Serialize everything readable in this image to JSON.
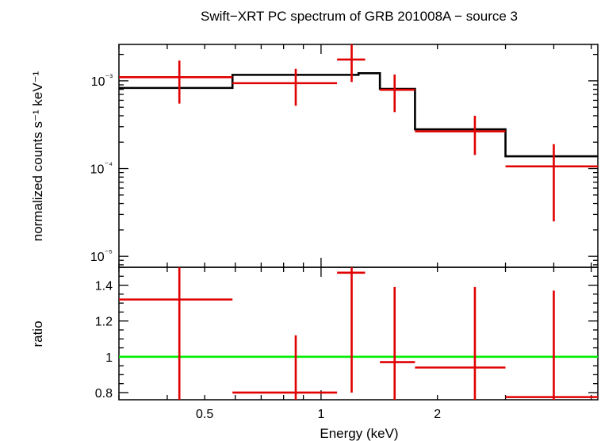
{
  "chart_data": [
    {
      "type": "line",
      "title": "Swift−XRT PC spectrum of GRB 201008A − source 3",
      "ylabel": "normalized counts s⁻¹ keV⁻¹",
      "xscale": "log",
      "yscale": "log",
      "xlim": [
        0.3,
        5.2
      ],
      "ylim": [
        7.5e-06,
        0.0026
      ],
      "yticks": [
        {
          "value": 0.001,
          "label": "10⁻³"
        },
        {
          "value": 0.0001,
          "label": "10⁻⁴"
        },
        {
          "value": 1e-05,
          "label": "10⁻⁵"
        }
      ],
      "series": [
        {
          "style": "step",
          "color": "#000000",
          "bins": [
            {
              "x0": 0.3,
              "x1": 0.59,
              "y": 0.00083
            },
            {
              "x0": 0.59,
              "x1": 1.25,
              "y": 0.00117
            },
            {
              "x0": 1.25,
              "x1": 1.42,
              "y": 0.00122
            },
            {
              "x0": 1.42,
              "x1": 1.75,
              "y": 0.00081
            },
            {
              "x0": 1.75,
              "x1": 3.0,
              "y": 0.00028
            },
            {
              "x0": 3.0,
              "x1": 5.2,
              "y": 0.000138
            }
          ]
        },
        {
          "style": "errorbar",
          "color": "#e00000",
          "points": [
            {
              "x": 0.43,
              "xlo": 0.3,
              "xhi": 0.59,
              "y": 0.0011,
              "ylo": 0.00055,
              "yhi": 0.0017
            },
            {
              "x": 0.86,
              "xlo": 0.59,
              "xhi": 1.1,
              "y": 0.00094,
              "ylo": 0.00052,
              "yhi": 0.00137
            },
            {
              "x": 1.2,
              "xlo": 1.1,
              "xhi": 1.3,
              "y": 0.00175,
              "ylo": 0.00097,
              "yhi": 0.0026
            },
            {
              "x": 1.55,
              "xlo": 1.42,
              "xhi": 1.75,
              "y": 0.00079,
              "ylo": 0.00044,
              "yhi": 0.00118
            },
            {
              "x": 2.5,
              "xlo": 1.75,
              "xhi": 3.0,
              "y": 0.000266,
              "ylo": 0.000143,
              "yhi": 0.0004
            },
            {
              "x": 4.0,
              "xlo": 3.0,
              "xhi": 5.2,
              "y": 0.000106,
              "ylo": 2.5e-05,
              "yhi": 0.00019
            }
          ]
        }
      ]
    },
    {
      "type": "line",
      "xlabel": "Energy (keV)",
      "ylabel": "ratio",
      "xscale": "log",
      "xlim": [
        0.3,
        5.2
      ],
      "ylim": [
        0.76,
        1.5
      ],
      "xticks": [
        {
          "value": 0.5,
          "label": "0.5"
        },
        {
          "value": 1,
          "label": "1"
        },
        {
          "value": 2,
          "label": "2"
        }
      ],
      "yticks": [
        {
          "value": 0.8,
          "label": "0.8"
        },
        {
          "value": 1,
          "label": "1"
        },
        {
          "value": 1.2,
          "label": "1.2"
        },
        {
          "value": 1.4,
          "label": "1.4"
        }
      ],
      "series": [
        {
          "style": "hline",
          "color": "#00ee00",
          "y": 1
        },
        {
          "style": "errorbar",
          "color": "#e00000",
          "points": [
            {
              "x": 0.43,
              "xlo": 0.3,
              "xhi": 0.59,
              "y": 1.32,
              "ylo": 0.76,
              "yhi": 1.5
            },
            {
              "x": 0.86,
              "xlo": 0.59,
              "xhi": 1.1,
              "y": 0.8,
              "ylo": 0.76,
              "yhi": 1.12
            },
            {
              "x": 1.2,
              "xlo": 1.1,
              "xhi": 1.3,
              "y": 1.47,
              "ylo": 0.8,
              "yhi": 1.5
            },
            {
              "x": 1.55,
              "xlo": 1.42,
              "xhi": 1.75,
              "y": 0.97,
              "ylo": 0.76,
              "yhi": 1.39
            },
            {
              "x": 2.5,
              "xlo": 1.75,
              "xhi": 3.0,
              "y": 0.94,
              "ylo": 0.76,
              "yhi": 1.39
            },
            {
              "x": 4.0,
              "xlo": 3.0,
              "xhi": 5.2,
              "y": 0.775,
              "ylo": 0.76,
              "yhi": 1.37
            }
          ]
        }
      ]
    }
  ]
}
